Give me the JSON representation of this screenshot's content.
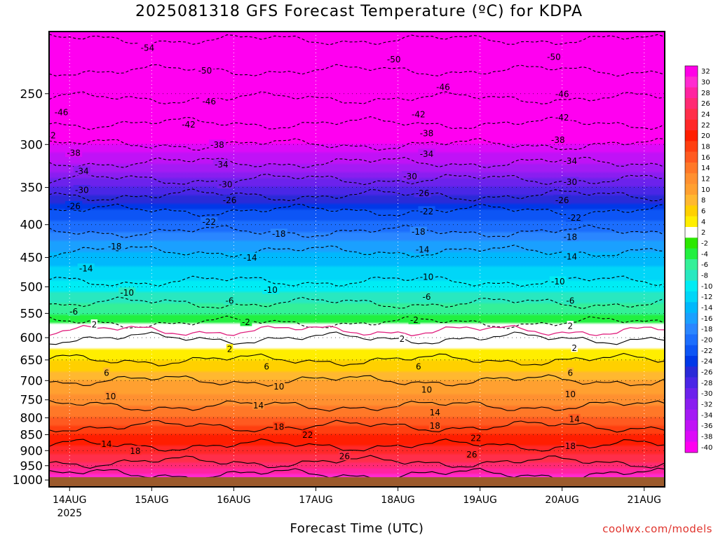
{
  "title": "2025081318 GFS Forecast Temperature (ºC) for KDPA",
  "credit": "coolwx.com/models",
  "chart_data": {
    "type": "heatmap",
    "title": "2025081318 GFS Forecast Temperature (ºC) for KDPA",
    "xlabel": "Forecast Time (UTC)",
    "ylabel": "",
    "x_ticks": [
      {
        "label": "14AUG",
        "sublabel": "2025",
        "day": 14
      },
      {
        "label": "15AUG",
        "sublabel": "",
        "day": 15
      },
      {
        "label": "16AUG",
        "sublabel": "",
        "day": 16
      },
      {
        "label": "17AUG",
        "sublabel": "",
        "day": 17
      },
      {
        "label": "18AUG",
        "sublabel": "",
        "day": 18
      },
      {
        "label": "19AUG",
        "sublabel": "",
        "day": 19
      },
      {
        "label": "20AUG",
        "sublabel": "",
        "day": 20
      },
      {
        "label": "21AUG",
        "sublabel": "",
        "day": 21
      }
    ],
    "x_range_days": [
      13.75,
      21.25
    ],
    "y_axis_pressure_hpa": [
      250,
      300,
      350,
      400,
      450,
      500,
      550,
      600,
      650,
      700,
      750,
      800,
      850,
      900,
      950,
      1000
    ],
    "y_range_hpa": [
      200,
      1025
    ],
    "y_scale": "log-pressure",
    "surface_pressure_hpa": 990,
    "surface_color": "#9c5a2c",
    "freezing_line_color": "#e0207e",
    "contour_interval": 4,
    "temperature_profile": [
      {
        "p": 200,
        "t": -55
      },
      {
        "p": 230,
        "t": -50
      },
      {
        "p": 260,
        "t": -45
      },
      {
        "p": 290,
        "t": -40
      },
      {
        "p": 320,
        "t": -34
      },
      {
        "p": 350,
        "t": -28
      },
      {
        "p": 380,
        "t": -22
      },
      {
        "p": 410,
        "t": -18
      },
      {
        "p": 440,
        "t": -14
      },
      {
        "p": 480,
        "t": -11
      },
      {
        "p": 520,
        "t": -7
      },
      {
        "p": 560,
        "t": -3
      },
      {
        "p": 585,
        "t": 0
      },
      {
        "p": 610,
        "t": 3
      },
      {
        "p": 650,
        "t": 6
      },
      {
        "p": 700,
        "t": 10
      },
      {
        "p": 750,
        "t": 13
      },
      {
        "p": 800,
        "t": 16
      },
      {
        "p": 850,
        "t": 20
      },
      {
        "p": 900,
        "t": 23
      },
      {
        "p": 950,
        "t": 27
      },
      {
        "p": 990,
        "t": 31
      }
    ],
    "contour_labels": [
      {
        "text": "-54",
        "x": 14.95,
        "p": 212
      },
      {
        "text": "-50",
        "x": 15.65,
        "p": 230
      },
      {
        "text": "-50",
        "x": 17.95,
        "p": 221
      },
      {
        "text": "-50",
        "x": 19.9,
        "p": 219
      },
      {
        "text": "-46",
        "x": 13.9,
        "p": 267
      },
      {
        "text": "-46",
        "x": 15.7,
        "p": 257
      },
      {
        "text": "-46",
        "x": 18.55,
        "p": 244
      },
      {
        "text": "-46",
        "x": 20.0,
        "p": 250
      },
      {
        "text": "-42",
        "x": 13.75,
        "p": 290
      },
      {
        "text": "-42",
        "x": 15.45,
        "p": 279
      },
      {
        "text": "-42",
        "x": 18.25,
        "p": 269
      },
      {
        "text": "-42",
        "x": 20.0,
        "p": 272
      },
      {
        "text": "-38",
        "x": 14.05,
        "p": 309
      },
      {
        "text": "-38",
        "x": 15.8,
        "p": 300
      },
      {
        "text": "-38",
        "x": 18.35,
        "p": 288
      },
      {
        "text": "-38",
        "x": 19.95,
        "p": 295
      },
      {
        "text": "-34",
        "x": 14.15,
        "p": 330
      },
      {
        "text": "-34",
        "x": 15.85,
        "p": 322
      },
      {
        "text": "-34",
        "x": 18.35,
        "p": 310
      },
      {
        "text": "-34",
        "x": 20.1,
        "p": 318
      },
      {
        "text": "-30",
        "x": 14.15,
        "p": 353
      },
      {
        "text": "-30",
        "x": 15.9,
        "p": 346
      },
      {
        "text": "-30",
        "x": 18.15,
        "p": 336
      },
      {
        "text": "-30",
        "x": 20.1,
        "p": 343
      },
      {
        "text": "-26",
        "x": 14.05,
        "p": 374
      },
      {
        "text": "-26",
        "x": 15.95,
        "p": 366
      },
      {
        "text": "-26",
        "x": 18.3,
        "p": 357
      },
      {
        "text": "-26",
        "x": 20.0,
        "p": 366
      },
      {
        "text": "-22",
        "x": 15.7,
        "p": 396
      },
      {
        "text": "-22",
        "x": 18.35,
        "p": 381
      },
      {
        "text": "-22",
        "x": 20.15,
        "p": 390
      },
      {
        "text": "-18",
        "x": 14.55,
        "p": 432
      },
      {
        "text": "-18",
        "x": 16.55,
        "p": 413
      },
      {
        "text": "-18",
        "x": 18.25,
        "p": 410
      },
      {
        "text": "-18",
        "x": 20.1,
        "p": 418
      },
      {
        "text": "-14",
        "x": 14.2,
        "p": 468
      },
      {
        "text": "-14",
        "x": 16.2,
        "p": 450
      },
      {
        "text": "-14",
        "x": 18.3,
        "p": 437
      },
      {
        "text": "-14",
        "x": 20.1,
        "p": 448
      },
      {
        "text": "-10",
        "x": 14.7,
        "p": 510
      },
      {
        "text": "-10",
        "x": 16.45,
        "p": 505
      },
      {
        "text": "-10",
        "x": 18.35,
        "p": 482
      },
      {
        "text": "-10",
        "x": 19.95,
        "p": 490
      },
      {
        "text": "-6",
        "x": 14.05,
        "p": 546
      },
      {
        "text": "-6",
        "x": 15.95,
        "p": 525
      },
      {
        "text": "-6",
        "x": 18.35,
        "p": 518
      },
      {
        "text": "-6",
        "x": 20.1,
        "p": 525
      },
      {
        "text": "-2",
        "x": 16.15,
        "p": 567
      },
      {
        "text": "-2",
        "x": 18.2,
        "p": 563
      },
      {
        "text": "2",
        "x": 14.3,
        "p": 572
      },
      {
        "text": "2",
        "x": 15.95,
        "p": 625
      },
      {
        "text": "2",
        "x": 18.05,
        "p": 602
      },
      {
        "text": "2",
        "x": 20.1,
        "p": 575
      },
      {
        "text": "2",
        "x": 20.15,
        "p": 622
      },
      {
        "text": "6",
        "x": 14.45,
        "p": 680
      },
      {
        "text": "6",
        "x": 16.4,
        "p": 665
      },
      {
        "text": "6",
        "x": 18.25,
        "p": 665
      },
      {
        "text": "6",
        "x": 20.1,
        "p": 680
      },
      {
        "text": "10",
        "x": 14.5,
        "p": 740
      },
      {
        "text": "10",
        "x": 16.55,
        "p": 715
      },
      {
        "text": "10",
        "x": 18.35,
        "p": 723
      },
      {
        "text": "10",
        "x": 20.1,
        "p": 735
      },
      {
        "text": "14",
        "x": 16.3,
        "p": 765
      },
      {
        "text": "14",
        "x": 18.45,
        "p": 784
      },
      {
        "text": "14",
        "x": 20.15,
        "p": 803
      },
      {
        "text": "14",
        "x": 14.45,
        "p": 878
      },
      {
        "text": "18",
        "x": 14.8,
        "p": 900
      },
      {
        "text": "18",
        "x": 16.55,
        "p": 826
      },
      {
        "text": "18",
        "x": 18.45,
        "p": 823
      },
      {
        "text": "18",
        "x": 20.1,
        "p": 885
      },
      {
        "text": "22",
        "x": 16.9,
        "p": 850
      },
      {
        "text": "22",
        "x": 18.95,
        "p": 860
      },
      {
        "text": "26",
        "x": 17.35,
        "p": 918
      },
      {
        "text": "26",
        "x": 18.9,
        "p": 912
      }
    ],
    "colorbar": {
      "levels": [
        "32",
        "30",
        "28",
        "26",
        "24",
        "22",
        "20",
        "18",
        "16",
        "14",
        "12",
        "10",
        "8",
        "6",
        "4",
        "2",
        "-2",
        "-4",
        "-6",
        "-8",
        "-10",
        "-12",
        "-14",
        "-16",
        "-18",
        "-20",
        "-22",
        "-24",
        "-26",
        "-28",
        "-30",
        "-32",
        "-34",
        "-36",
        "-38",
        "-40"
      ],
      "colors": [
        "#ff00e6",
        "#ff2ad0",
        "#ff23a0",
        "#ff2a73",
        "#ff2e4a",
        "#ff2828",
        "#ff1e00",
        "#ff3f10",
        "#ff5a20",
        "#ff7828",
        "#ff9030",
        "#ffa030",
        "#ffb830",
        "#ffd000",
        "#ffee00",
        "#ffffff",
        "#2ce800",
        "#22f040",
        "#34f098",
        "#28e8c0",
        "#00ecf4",
        "#00d6f8",
        "#00b8fc",
        "#1aa0ff",
        "#2a86ff",
        "#1c6efd",
        "#0d55f5",
        "#0038e8",
        "#2a2ad8",
        "#4a26e6",
        "#6c22ec",
        "#8a1ef0",
        "#a41af4",
        "#c012f6",
        "#dc0af8",
        "#ff00f0"
      ]
    },
    "legend_placement": "right",
    "grid": "dotted"
  }
}
